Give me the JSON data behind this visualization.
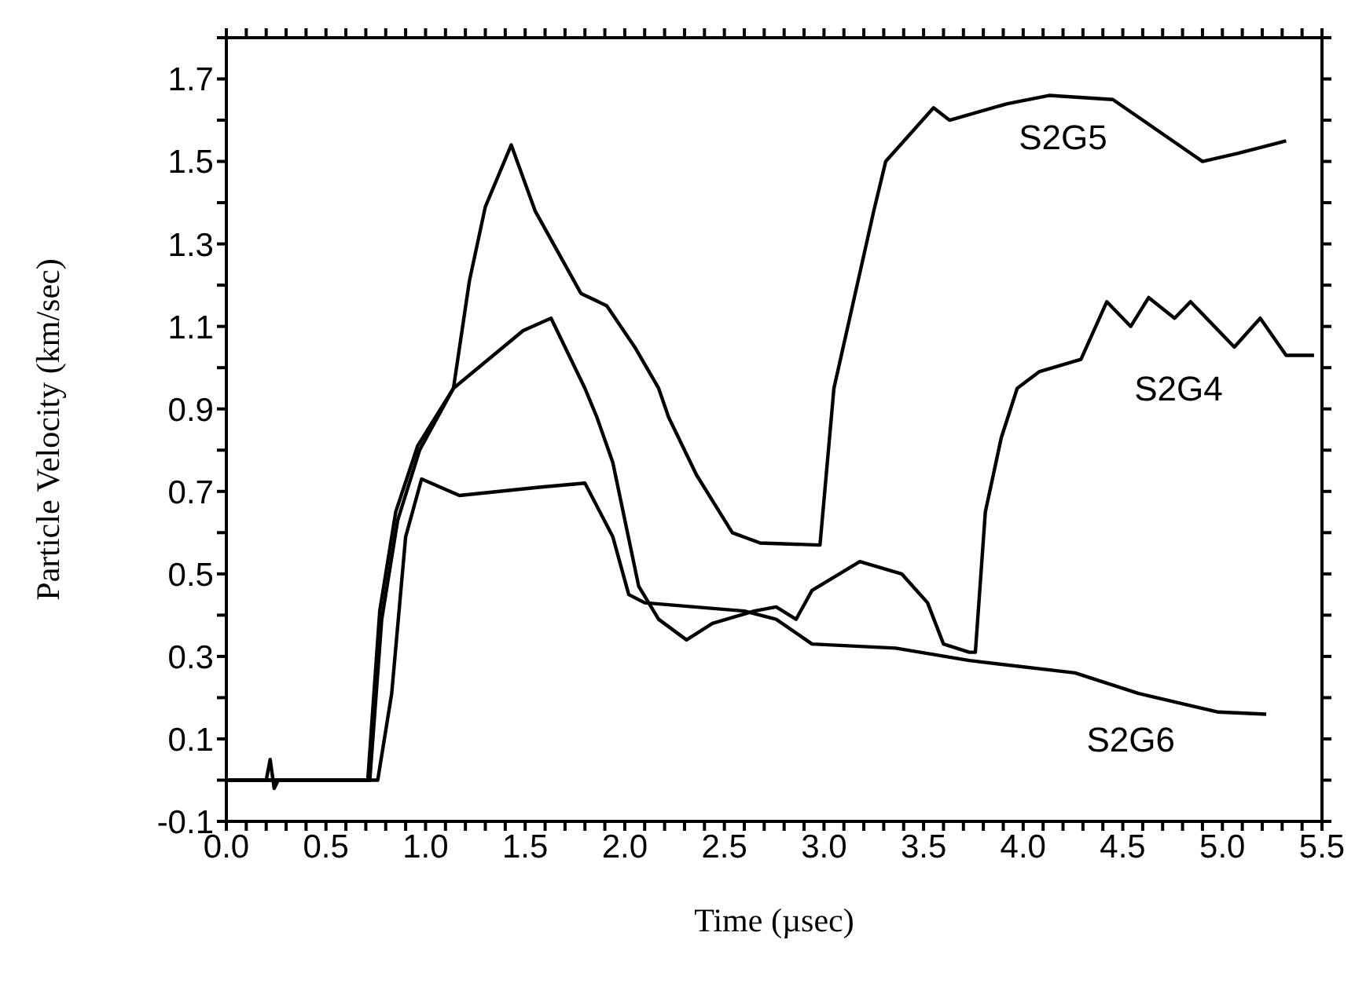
{
  "chart_data": {
    "type": "line",
    "xlabel": "Time (µsec)",
    "ylabel": "Particle Velocity (km/sec)",
    "xlim": [
      0,
      5.5
    ],
    "ylim": [
      -0.1,
      1.8
    ],
    "xticks": [
      {
        "value": 0,
        "label": "0.0"
      },
      {
        "value": 0.1,
        "label": null
      },
      {
        "value": 0.2,
        "label": null
      },
      {
        "value": 0.3,
        "label": null
      },
      {
        "value": 0.4,
        "label": null
      },
      0.5,
      {
        "value": 0.6,
        "label": null
      },
      {
        "value": 0.7,
        "label": null
      },
      {
        "value": 0.8,
        "label": null
      },
      {
        "value": 0.9,
        "label": null
      },
      {
        "value": 1,
        "label": "1.0"
      },
      {
        "value": 1.1,
        "label": null
      },
      {
        "value": 1.2,
        "label": null
      },
      {
        "value": 1.3,
        "label": null
      },
      {
        "value": 1.4,
        "label": null
      },
      1.5,
      {
        "value": 1.6,
        "label": null
      },
      {
        "value": 1.7,
        "label": null
      },
      {
        "value": 1.8,
        "label": null
      },
      {
        "value": 1.9,
        "label": null
      },
      {
        "value": 2,
        "label": "2.0"
      },
      {
        "value": 2.1,
        "label": null
      },
      {
        "value": 2.2,
        "label": null
      },
      {
        "value": 2.3,
        "label": null
      },
      {
        "value": 2.4,
        "label": null
      },
      2.5,
      {
        "value": 2.6,
        "label": null
      },
      {
        "value": 2.7,
        "label": null
      },
      {
        "value": 2.8,
        "label": null
      },
      {
        "value": 2.9,
        "label": null
      },
      {
        "value": 3,
        "label": "3.0"
      },
      {
        "value": 3.1,
        "label": null
      },
      {
        "value": 3.2,
        "label": null
      },
      {
        "value": 3.3,
        "label": null
      },
      {
        "value": 3.4,
        "label": null
      },
      3.5,
      {
        "value": 3.6,
        "label": null
      },
      {
        "value": 3.7,
        "label": null
      },
      {
        "value": 3.8,
        "label": null
      },
      {
        "value": 3.9,
        "label": null
      },
      {
        "value": 4,
        "label": "4.0"
      },
      {
        "value": 4.1,
        "label": null
      },
      {
        "value": 4.2,
        "label": null
      },
      {
        "value": 4.3,
        "label": null
      },
      {
        "value": 4.4,
        "label": null
      },
      4.5,
      {
        "value": 4.6,
        "label": null
      },
      {
        "value": 4.7,
        "label": null
      },
      {
        "value": 4.8,
        "label": null
      },
      {
        "value": 4.9,
        "label": null
      },
      {
        "value": 5,
        "label": "5.0"
      },
      {
        "value": 5.1,
        "label": null
      },
      {
        "value": 5.2,
        "label": null
      },
      {
        "value": 5.3,
        "label": null
      },
      {
        "value": 5.4,
        "label": null
      },
      5.5
    ],
    "yticks": [
      -0.1,
      {
        "value": 0,
        "label": null
      },
      0.1,
      {
        "value": 0.2,
        "label": null
      },
      0.3,
      {
        "value": 0.4,
        "label": null
      },
      0.5,
      {
        "value": 0.6,
        "label": null
      },
      0.7,
      {
        "value": 0.8,
        "label": null
      },
      0.9,
      {
        "value": 1,
        "label": null
      },
      1.1,
      {
        "value": 1.2,
        "label": null
      },
      1.3,
      {
        "value": 1.4,
        "label": null
      },
      1.5,
      {
        "value": 1.6,
        "label": null
      },
      1.7,
      {
        "value": 1.8,
        "label": null
      }
    ],
    "marker": "none",
    "line_style": "solid",
    "series": [
      {
        "name": "S2G5",
        "color": "#000000",
        "x": [
          0,
          0.2,
          0.22,
          0.24,
          0.26,
          0.71,
          0.77,
          0.85,
          0.96,
          1.14,
          1.22,
          1.3,
          1.43,
          1.55,
          1.78,
          1.91,
          2.05,
          2.17,
          2.22,
          2.36,
          2.54,
          2.68,
          2.98,
          3.05,
          3.25,
          3.31,
          3.55,
          3.63,
          3.92,
          4.13,
          4.45,
          4.66,
          4.9,
          5.08,
          5.32
        ],
        "values": [
          0,
          0,
          0.05,
          -0.02,
          0,
          0,
          0.41,
          0.65,
          0.81,
          0.95,
          1.21,
          1.39,
          1.54,
          1.38,
          1.18,
          1.15,
          1.05,
          0.95,
          0.88,
          0.74,
          0.6,
          0.575,
          0.57,
          0.95,
          1.38,
          1.5,
          1.63,
          1.6,
          1.64,
          1.66,
          1.65,
          1.58,
          1.5,
          1.52,
          1.55
        ]
      },
      {
        "name": "S2G4",
        "color": "#000000",
        "x": [
          0,
          0.72,
          0.78,
          0.86,
          0.97,
          1.14,
          1.49,
          1.63,
          1.8,
          1.86,
          1.94,
          2.07,
          2.17,
          2.31,
          2.44,
          2.65,
          2.76,
          2.86,
          2.94,
          3.18,
          3.39,
          3.52,
          3.6,
          3.73,
          3.76,
          3.81,
          3.89,
          3.97,
          4.08,
          4.29,
          4.42,
          4.54,
          4.63,
          4.76,
          4.84,
          5.06,
          5.19,
          5.32,
          5.46
        ],
        "values": [
          0,
          0,
          0.39,
          0.63,
          0.8,
          0.95,
          1.09,
          1.12,
          0.95,
          0.88,
          0.77,
          0.47,
          0.39,
          0.34,
          0.38,
          0.41,
          0.42,
          0.39,
          0.46,
          0.53,
          0.5,
          0.43,
          0.33,
          0.31,
          0.31,
          0.65,
          0.83,
          0.95,
          0.99,
          1.02,
          1.16,
          1.1,
          1.17,
          1.12,
          1.16,
          1.05,
          1.12,
          1.03,
          1.03
        ]
      },
      {
        "name": "S2G6",
        "color": "#000000",
        "x": [
          0,
          0.76,
          0.83,
          0.9,
          0.98,
          1.17,
          1.57,
          1.8,
          1.94,
          2.02,
          2.1,
          2.6,
          2.76,
          2.94,
          3.36,
          3.73,
          4.26,
          4.58,
          4.98,
          5.22
        ],
        "values": [
          0,
          0,
          0.21,
          0.59,
          0.73,
          0.69,
          0.71,
          0.72,
          0.59,
          0.45,
          0.43,
          0.41,
          0.39,
          0.33,
          0.32,
          0.29,
          0.26,
          0.21,
          0.165,
          0.16
        ]
      }
    ]
  }
}
